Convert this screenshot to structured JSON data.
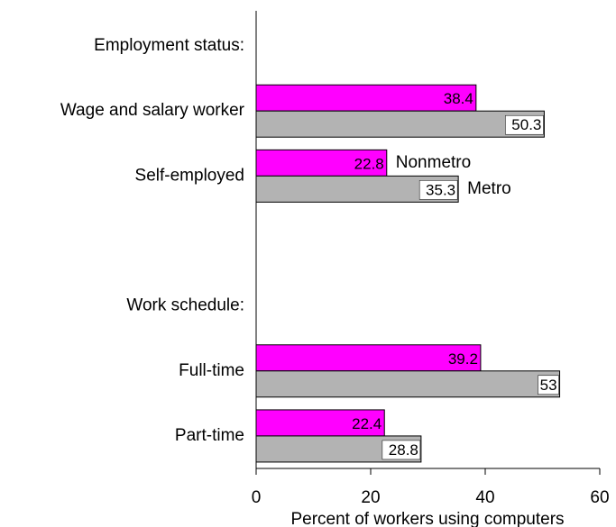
{
  "chart_data": {
    "type": "bar",
    "orientation": "horizontal",
    "categories": [
      "Employment status:",
      "Wage and salary worker",
      "Self-employed",
      null,
      "Work schedule:",
      "Full-time",
      "Part-time"
    ],
    "series": [
      {
        "name": "Nonmetro",
        "color": "#ff00ff",
        "values": [
          null,
          38.4,
          22.8,
          null,
          null,
          39.2,
          22.4
        ]
      },
      {
        "name": "Metro",
        "color": "#b3b3b3",
        "values": [
          null,
          50.3,
          35.3,
          null,
          null,
          53,
          28.8
        ]
      }
    ],
    "xlabel": "Percent of workers using computers",
    "xlim": [
      0,
      60
    ],
    "xticks": [
      0,
      20,
      40,
      60
    ],
    "grid": false,
    "legend": "inline"
  }
}
